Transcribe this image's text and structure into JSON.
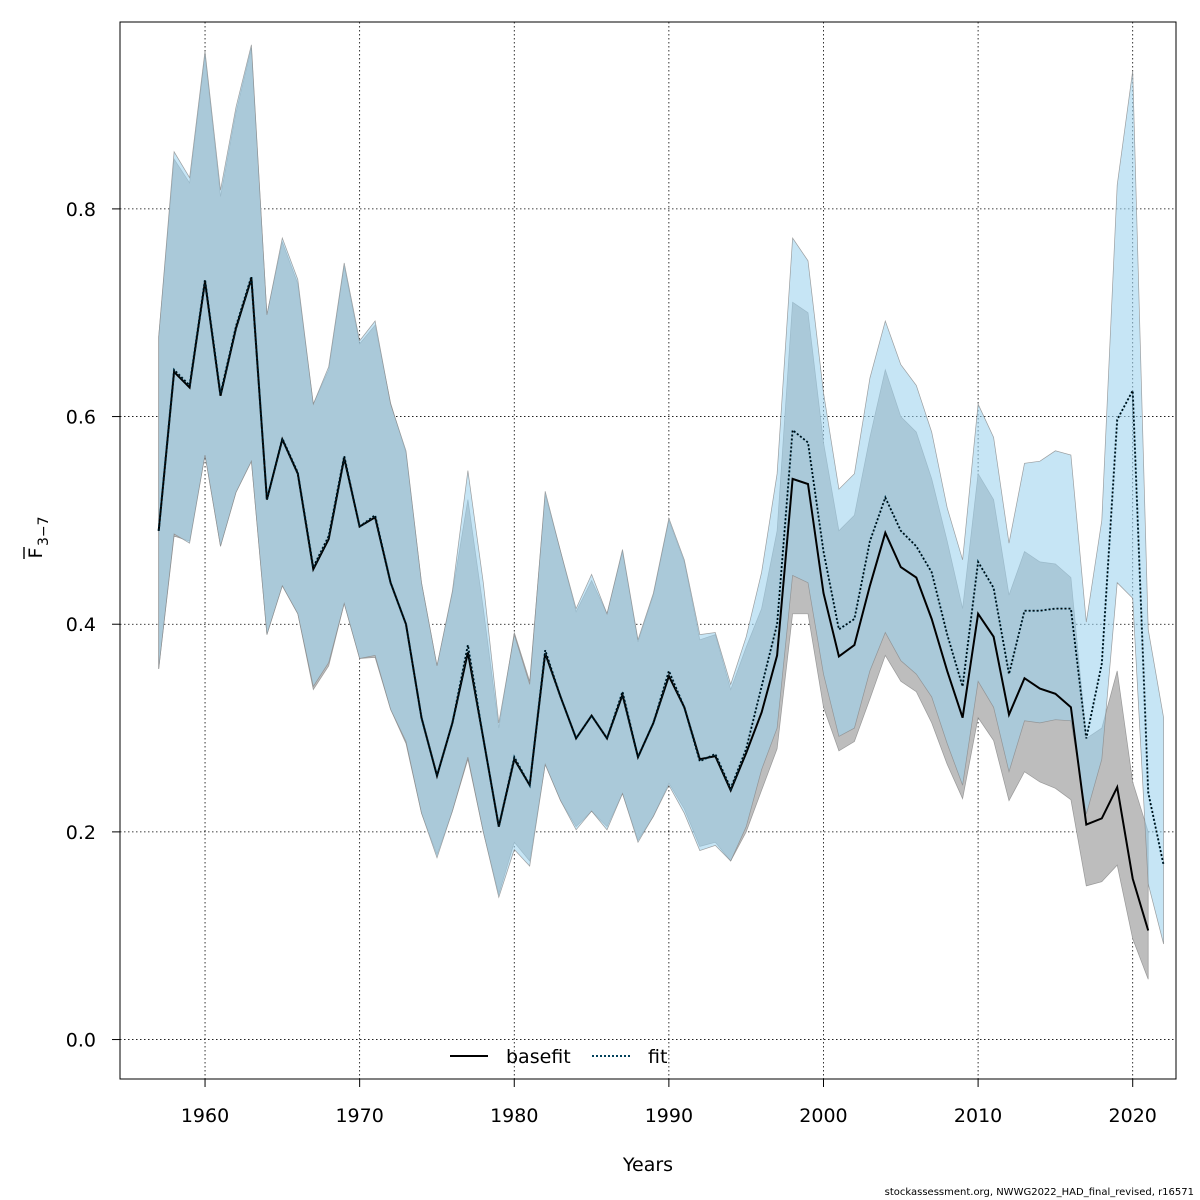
{
  "credit": "stockassessment.org, NWWG2022_HAD_final_revised, r16571",
  "colors": {
    "basefit_band": "#bdbdbd",
    "fit_band": "#9cd2ee",
    "basefit_line": "#000000",
    "fit_line": "#00405a",
    "grid": "#000000"
  },
  "chart_data": {
    "type": "line",
    "title": "",
    "xlabel": "Years",
    "ylabel_main": "F",
    "ylabel_sub": "3−7",
    "xlim": [
      1954.5,
      2022.8
    ],
    "ylim": [
      -0.038,
      0.98
    ],
    "xticks": [
      1960,
      1970,
      1980,
      1990,
      2000,
      2010,
      2020
    ],
    "yticks": [
      0.0,
      0.2,
      0.4,
      0.6,
      0.8
    ],
    "ytick_labels": [
      "0.0",
      "0.2",
      "0.4",
      "0.6",
      "0.8"
    ],
    "grid": true,
    "legend_position": "bottom",
    "legend": [
      {
        "label": "basefit",
        "style": "solid"
      },
      {
        "label": "fit",
        "style": "dotted"
      }
    ],
    "series": [
      {
        "name": "basefit",
        "x": [
          1957,
          1958,
          1959,
          1960,
          1961,
          1962,
          1963,
          1964,
          1965,
          1966,
          1967,
          1968,
          1969,
          1970,
          1971,
          1972,
          1973,
          1974,
          1975,
          1976,
          1977,
          1978,
          1979,
          1980,
          1981,
          1982,
          1983,
          1984,
          1985,
          1986,
          1987,
          1988,
          1989,
          1990,
          1991,
          1992,
          1993,
          1994,
          1995,
          1996,
          1997,
          1998,
          1999,
          2000,
          2001,
          2002,
          2003,
          2004,
          2005,
          2006,
          2007,
          2008,
          2009,
          2010,
          2011,
          2012,
          2013,
          2014,
          2015,
          2016,
          2017,
          2018,
          2019,
          2020,
          2021
        ],
        "values": [
          0.49,
          0.643,
          0.628,
          0.73,
          0.62,
          0.685,
          0.733,
          0.52,
          0.578,
          0.545,
          0.453,
          0.482,
          0.56,
          0.494,
          0.503,
          0.44,
          0.4,
          0.31,
          0.254,
          0.305,
          0.373,
          0.29,
          0.205,
          0.27,
          0.245,
          0.372,
          0.33,
          0.29,
          0.312,
          0.29,
          0.332,
          0.272,
          0.305,
          0.35,
          0.32,
          0.27,
          0.273,
          0.24,
          0.276,
          0.315,
          0.37,
          0.54,
          0.535,
          0.43,
          0.369,
          0.38,
          0.437,
          0.488,
          0.455,
          0.445,
          0.405,
          0.355,
          0.31,
          0.41,
          0.388,
          0.313,
          0.348,
          0.338,
          0.333,
          0.32,
          0.207,
          0.213,
          0.243,
          0.155,
          0.105
        ],
        "lower": [
          0.357,
          0.485,
          0.48,
          0.563,
          0.475,
          0.527,
          0.557,
          0.39,
          0.437,
          0.41,
          0.337,
          0.36,
          0.42,
          0.367,
          0.368,
          0.318,
          0.285,
          0.218,
          0.178,
          0.22,
          0.27,
          0.2,
          0.14,
          0.19,
          0.172,
          0.265,
          0.23,
          0.205,
          0.22,
          0.205,
          0.237,
          0.192,
          0.215,
          0.247,
          0.222,
          0.186,
          0.19,
          0.172,
          0.2,
          0.24,
          0.28,
          0.41,
          0.41,
          0.32,
          0.278,
          0.287,
          0.328,
          0.37,
          0.345,
          0.335,
          0.305,
          0.265,
          0.232,
          0.31,
          0.288,
          0.23,
          0.258,
          0.248,
          0.242,
          0.231,
          0.148,
          0.152,
          0.168,
          0.097,
          0.058
        ],
        "upper": [
          0.677,
          0.848,
          0.825,
          0.948,
          0.812,
          0.893,
          0.955,
          0.698,
          0.768,
          0.728,
          0.612,
          0.645,
          0.745,
          0.67,
          0.688,
          0.613,
          0.565,
          0.44,
          0.36,
          0.43,
          0.52,
          0.415,
          0.3,
          0.392,
          0.345,
          0.525,
          0.47,
          0.412,
          0.442,
          0.41,
          0.47,
          0.383,
          0.428,
          0.5,
          0.46,
          0.385,
          0.39,
          0.337,
          0.378,
          0.415,
          0.49,
          0.71,
          0.7,
          0.575,
          0.49,
          0.505,
          0.58,
          0.645,
          0.6,
          0.585,
          0.54,
          0.48,
          0.415,
          0.545,
          0.52,
          0.428,
          0.47,
          0.46,
          0.458,
          0.445,
          0.29,
          0.3,
          0.355,
          0.248,
          0.2
        ]
      },
      {
        "name": "fit",
        "x": [
          1957,
          1958,
          1959,
          1960,
          1961,
          1962,
          1963,
          1964,
          1965,
          1966,
          1967,
          1968,
          1969,
          1970,
          1971,
          1972,
          1973,
          1974,
          1975,
          1976,
          1977,
          1978,
          1979,
          1980,
          1981,
          1982,
          1983,
          1984,
          1985,
          1986,
          1987,
          1988,
          1989,
          1990,
          1991,
          1992,
          1993,
          1994,
          1995,
          1996,
          1997,
          1998,
          1999,
          2000,
          2001,
          2002,
          2003,
          2004,
          2005,
          2006,
          2007,
          2008,
          2009,
          2010,
          2011,
          2012,
          2013,
          2014,
          2015,
          2016,
          2017,
          2018,
          2019,
          2020,
          2021,
          2022
        ],
        "values": [
          0.49,
          0.645,
          0.63,
          0.732,
          0.622,
          0.687,
          0.735,
          0.52,
          0.579,
          0.546,
          0.455,
          0.485,
          0.562,
          0.494,
          0.505,
          0.44,
          0.4,
          0.31,
          0.254,
          0.305,
          0.38,
          0.29,
          0.205,
          0.272,
          0.245,
          0.375,
          0.33,
          0.29,
          0.312,
          0.29,
          0.335,
          0.272,
          0.305,
          0.355,
          0.32,
          0.268,
          0.275,
          0.242,
          0.28,
          0.34,
          0.4,
          0.587,
          0.575,
          0.47,
          0.395,
          0.405,
          0.48,
          0.522,
          0.49,
          0.475,
          0.45,
          0.39,
          0.34,
          0.46,
          0.435,
          0.352,
          0.413,
          0.413,
          0.415,
          0.415,
          0.29,
          0.362,
          0.597,
          0.625,
          0.238,
          0.168
        ],
        "lower": [
          0.357,
          0.487,
          0.478,
          0.563,
          0.475,
          0.527,
          0.557,
          0.39,
          0.437,
          0.41,
          0.34,
          0.363,
          0.42,
          0.367,
          0.37,
          0.318,
          0.287,
          0.218,
          0.175,
          0.22,
          0.272,
          0.2,
          0.137,
          0.183,
          0.167,
          0.265,
          0.23,
          0.202,
          0.22,
          0.202,
          0.237,
          0.19,
          0.215,
          0.245,
          0.218,
          0.182,
          0.187,
          0.172,
          0.205,
          0.26,
          0.3,
          0.447,
          0.44,
          0.352,
          0.292,
          0.3,
          0.355,
          0.392,
          0.365,
          0.352,
          0.33,
          0.285,
          0.245,
          0.345,
          0.32,
          0.258,
          0.307,
          0.305,
          0.308,
          0.307,
          0.217,
          0.27,
          0.44,
          0.425,
          0.15,
          0.092
        ],
        "upper": [
          0.677,
          0.855,
          0.83,
          0.952,
          0.818,
          0.898,
          0.958,
          0.698,
          0.772,
          0.732,
          0.612,
          0.648,
          0.748,
          0.673,
          0.692,
          0.612,
          0.567,
          0.44,
          0.36,
          0.432,
          0.548,
          0.44,
          0.305,
          0.39,
          0.342,
          0.528,
          0.47,
          0.415,
          0.448,
          0.41,
          0.472,
          0.385,
          0.43,
          0.502,
          0.462,
          0.39,
          0.392,
          0.342,
          0.388,
          0.45,
          0.545,
          0.772,
          0.75,
          0.623,
          0.53,
          0.545,
          0.637,
          0.692,
          0.65,
          0.63,
          0.585,
          0.512,
          0.462,
          0.612,
          0.58,
          0.478,
          0.555,
          0.557,
          0.567,
          0.563,
          0.402,
          0.5,
          0.823,
          0.933,
          0.395,
          0.31
        ]
      }
    ]
  }
}
